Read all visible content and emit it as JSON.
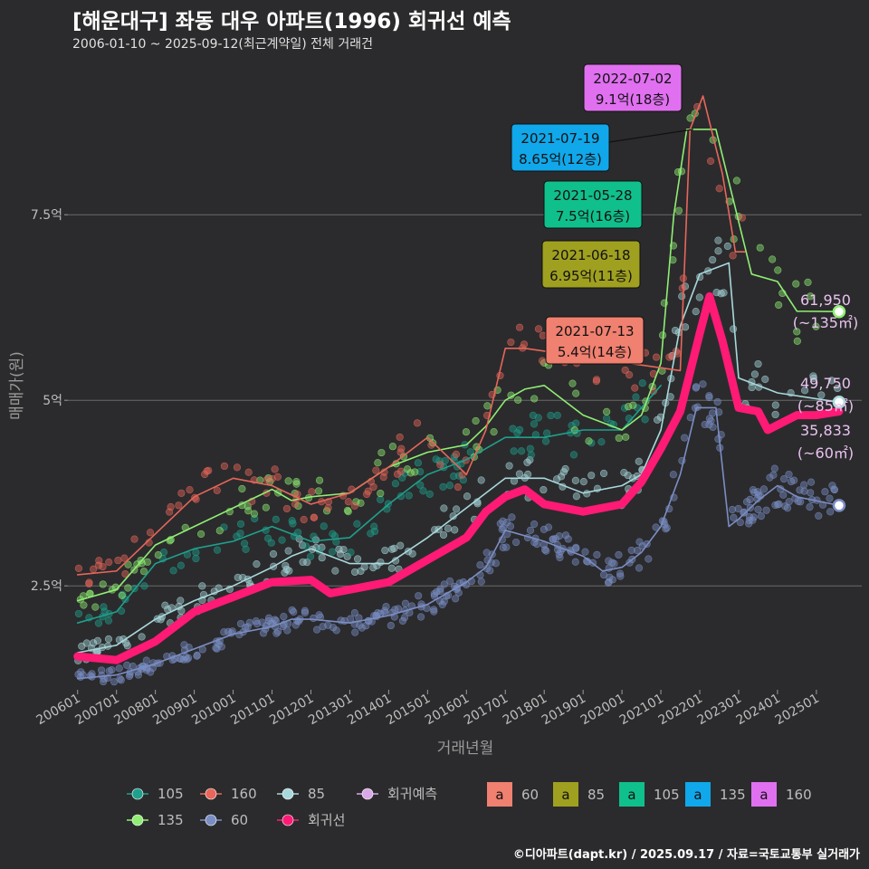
{
  "header": {
    "title": "[해운대구] 좌동 대우 아파트(1996) 회귀선 예측",
    "subtitle": "2006-01-10 ~ 2025-09-12(최근계약일) 전체 거래건",
    "caption": "©디아파트(dapt.kr) / 2025.09.17 / 자료=국토교통부 실거래가"
  },
  "chart_data": {
    "type": "line",
    "xlabel": "거래년월",
    "ylabel": "매매가(원)",
    "grid": true,
    "x_ticks": [
      "200601",
      "200701",
      "200801",
      "200901",
      "201001",
      "201101",
      "201201",
      "201301",
      "201401",
      "201501",
      "201601",
      "201701",
      "201801",
      "201901",
      "202001",
      "202101",
      "202201",
      "202301",
      "202401",
      "202501"
    ],
    "y_ticks": [
      {
        "value": 25000,
        "label": "2.5억"
      },
      {
        "value": 50000,
        "label": "5억"
      },
      {
        "value": 75000,
        "label": "7.5억"
      }
    ],
    "xlim": [
      "2005-10-01",
      "2026-03-01"
    ],
    "ylim": [
      11000,
      96000
    ],
    "colors": {
      "60": "#7b8ec4",
      "85": "#a8d8dc",
      "105": "#1fa08c",
      "135": "#90ee74",
      "160": "#e8665a",
      "reg": "#ff1a75"
    },
    "series": [
      {
        "name": "60",
        "color": "#7b8ec4",
        "points": [
          [
            "2006-01",
            12500
          ],
          [
            "2007-01",
            13000
          ],
          [
            "2008-01",
            14500
          ],
          [
            "2009-01",
            16500
          ],
          [
            "2010-01",
            18500
          ],
          [
            "2011-01",
            19500
          ],
          [
            "2011-07",
            20500
          ],
          [
            "2012-01",
            20500
          ],
          [
            "2013-01",
            20000
          ],
          [
            "2014-01",
            21000
          ],
          [
            "2015-01",
            22500
          ],
          [
            "2016-01",
            25500
          ],
          [
            "2016-07",
            27500
          ],
          [
            "2017-01",
            32500
          ],
          [
            "2018-01",
            31000
          ],
          [
            "2019-01",
            29000
          ],
          [
            "2019-07",
            27000
          ],
          [
            "2020-01",
            27500
          ],
          [
            "2020-07",
            29500
          ],
          [
            "2021-01",
            33000
          ],
          [
            "2021-07",
            40000
          ],
          [
            "2021-12",
            49000
          ],
          [
            "2022-06",
            49000
          ],
          [
            "2022-10",
            33000
          ],
          [
            "2023-01",
            34000
          ],
          [
            "2023-07",
            36500
          ],
          [
            "2024-01",
            38500
          ],
          [
            "2024-07",
            37000
          ],
          [
            "2025-08",
            35833
          ]
        ]
      },
      {
        "name": "85",
        "color": "#a8d8dc",
        "points": [
          [
            "2006-01",
            16000
          ],
          [
            "2007-01",
            17000
          ],
          [
            "2008-01",
            20500
          ],
          [
            "2009-01",
            23000
          ],
          [
            "2010-01",
            25000
          ],
          [
            "2011-01",
            27500
          ],
          [
            "2011-07",
            29000
          ],
          [
            "2012-01",
            30000
          ],
          [
            "2013-01",
            28000
          ],
          [
            "2014-01",
            28000
          ],
          [
            "2015-01",
            31500
          ],
          [
            "2016-01",
            35500
          ],
          [
            "2017-01",
            39500
          ],
          [
            "2018-01",
            39500
          ],
          [
            "2019-01",
            37500
          ],
          [
            "2020-01",
            38500
          ],
          [
            "2020-07",
            40000
          ],
          [
            "2021-01",
            46000
          ],
          [
            "2021-07",
            60000
          ],
          [
            "2022-01",
            67000
          ],
          [
            "2022-10",
            68500
          ],
          [
            "2023-01",
            53000
          ],
          [
            "2023-07",
            52000
          ],
          [
            "2024-01",
            51000
          ],
          [
            "2025-08",
            49750
          ]
        ]
      },
      {
        "name": "105",
        "color": "#1fa08c",
        "points": [
          [
            "2006-01",
            20000
          ],
          [
            "2007-01",
            21500
          ],
          [
            "2008-01",
            28000
          ],
          [
            "2009-01",
            30000
          ],
          [
            "2010-01",
            31000
          ],
          [
            "2011-01",
            33000
          ],
          [
            "2012-01",
            31000
          ],
          [
            "2013-01",
            31500
          ],
          [
            "2014-01",
            36000
          ],
          [
            "2015-01",
            40000
          ],
          [
            "2016-01",
            42000
          ],
          [
            "2017-01",
            45000
          ],
          [
            "2018-01",
            45000
          ],
          [
            "2019-01",
            46000
          ],
          [
            "2020-01",
            46000
          ],
          [
            "2021-01",
            52000
          ]
        ]
      },
      {
        "name": "135",
        "color": "#90ee74",
        "points": [
          [
            "2006-01",
            23000
          ],
          [
            "2007-01",
            24500
          ],
          [
            "2008-01",
            30500
          ],
          [
            "2009-01",
            33000
          ],
          [
            "2010-01",
            35500
          ],
          [
            "2011-01",
            38000
          ],
          [
            "2011-07",
            36500
          ],
          [
            "2012-01",
            37000
          ],
          [
            "2013-01",
            37500
          ],
          [
            "2014-01",
            41000
          ],
          [
            "2015-01",
            43000
          ],
          [
            "2016-01",
            44000
          ],
          [
            "2016-07",
            46500
          ],
          [
            "2017-01",
            50000
          ],
          [
            "2017-07",
            51500
          ],
          [
            "2018-01",
            52000
          ],
          [
            "2019-01",
            48000
          ],
          [
            "2020-01",
            46000
          ],
          [
            "2020-07",
            48000
          ],
          [
            "2021-01",
            55000
          ],
          [
            "2021-05",
            75000
          ],
          [
            "2021-09",
            86500
          ],
          [
            "2022-06",
            86500
          ],
          [
            "2023-05",
            67000
          ],
          [
            "2024-01",
            66000
          ],
          [
            "2024-07",
            62000
          ],
          [
            "2025-08",
            61950
          ]
        ]
      },
      {
        "name": "160",
        "color": "#e8665a",
        "points": [
          [
            "2006-01",
            26500
          ],
          [
            "2007-01",
            27000
          ],
          [
            "2008-01",
            32000
          ],
          [
            "2009-01",
            37000
          ],
          [
            "2010-01",
            39500
          ],
          [
            "2011-01",
            38500
          ],
          [
            "2012-01",
            36000
          ],
          [
            "2013-01",
            37500
          ],
          [
            "2014-01",
            41000
          ],
          [
            "2015-01",
            45000
          ],
          [
            "2016-01",
            40000
          ],
          [
            "2016-07",
            46000
          ],
          [
            "2017-01",
            57000
          ],
          [
            "2017-07",
            57000
          ],
          [
            "2021-07",
            54000
          ],
          [
            "2021-10",
            86500
          ],
          [
            "2022-02",
            91000
          ],
          [
            "2022-08",
            80500
          ],
          [
            "2022-12",
            70000
          ],
          [
            "2023-03",
            70000
          ]
        ]
      },
      {
        "name": "회귀선",
        "color": "#ff1a75",
        "points": [
          [
            "2006-01",
            15500
          ],
          [
            "2007-01",
            15000
          ],
          [
            "2008-01",
            17500
          ],
          [
            "2009-01",
            21500
          ],
          [
            "2010-01",
            23500
          ],
          [
            "2011-01",
            25500
          ],
          [
            "2012-01",
            25800
          ],
          [
            "2012-07",
            24000
          ],
          [
            "2013-01",
            24500
          ],
          [
            "2014-01",
            25500
          ],
          [
            "2015-01",
            28500
          ],
          [
            "2016-01",
            31500
          ],
          [
            "2016-07",
            35000
          ],
          [
            "2017-01",
            37000
          ],
          [
            "2017-07",
            38000
          ],
          [
            "2018-01",
            36000
          ],
          [
            "2019-01",
            35000
          ],
          [
            "2020-01",
            36000
          ],
          [
            "2020-07",
            39000
          ],
          [
            "2021-01",
            43500
          ],
          [
            "2021-07",
            48500
          ],
          [
            "2022-01",
            59000
          ],
          [
            "2022-04",
            64000
          ],
          [
            "2022-08",
            58000
          ],
          [
            "2023-01",
            49000
          ],
          [
            "2023-07",
            48500
          ],
          [
            "2023-10",
            46000
          ],
          [
            "2024-07",
            48000
          ],
          [
            "2025-01",
            48000
          ],
          [
            "2025-08",
            48500
          ]
        ]
      }
    ],
    "end_labels": [
      {
        "value": "61,950",
        "area": "(~135㎡)",
        "date": "2025-08",
        "y": 61950
      },
      {
        "value": "49,750",
        "area": "(~85㎡)",
        "date": "2025-08",
        "y": 49750
      },
      {
        "value": "35,833",
        "area": "(~60㎡)",
        "date": "2025-08",
        "y": 35833
      }
    ],
    "annotations": [
      {
        "date_label": "2022-07-02",
        "price_label": "9.1억(18층)",
        "fill": "#e070f0",
        "at": [
          "2022-02",
          86000
        ]
      },
      {
        "date_label": "2021-07-19",
        "price_label": "8.65억(12층)",
        "fill": "#10a8ea",
        "at": [
          "2021-01",
          80000
        ]
      },
      {
        "date_label": "2021-05-28",
        "price_label": "7.5억(16층)",
        "fill": "#10c08c",
        "at": [
          "2021-07",
          72500
        ]
      },
      {
        "date_label": "2021-06-18",
        "price_label": "6.95억(11층)",
        "fill": "#a0a020",
        "at": [
          "2021-02",
          64500
        ]
      },
      {
        "date_label": "2021-07-13",
        "price_label": "5.4억(14층)",
        "fill": "#f08070",
        "at": [
          "2021-01",
          52500
        ]
      }
    ],
    "legend": {
      "placement": "bottom",
      "row1": [
        {
          "label": "105",
          "color": "#1fa08c"
        },
        {
          "label": "160",
          "color": "#e8665a"
        },
        {
          "label": "85",
          "color": "#a8d8dc"
        },
        {
          "label": "회귀예측",
          "color": "#d9a8e8"
        }
      ],
      "row2": [
        {
          "label": "135",
          "color": "#90ee74"
        },
        {
          "label": "60",
          "color": "#7b8ec4"
        },
        {
          "label": "회귀선",
          "color": "#ff1a75"
        }
      ],
      "text_keys": [
        {
          "glyph": "a",
          "label": "60",
          "color": "#f08070"
        },
        {
          "glyph": "a",
          "label": "85",
          "color": "#a0a020"
        },
        {
          "glyph": "a",
          "label": "105",
          "color": "#10c08c"
        },
        {
          "glyph": "a",
          "label": "135",
          "color": "#10a8ea"
        },
        {
          "glyph": "a",
          "label": "160",
          "color": "#e070f0"
        }
      ]
    }
  }
}
